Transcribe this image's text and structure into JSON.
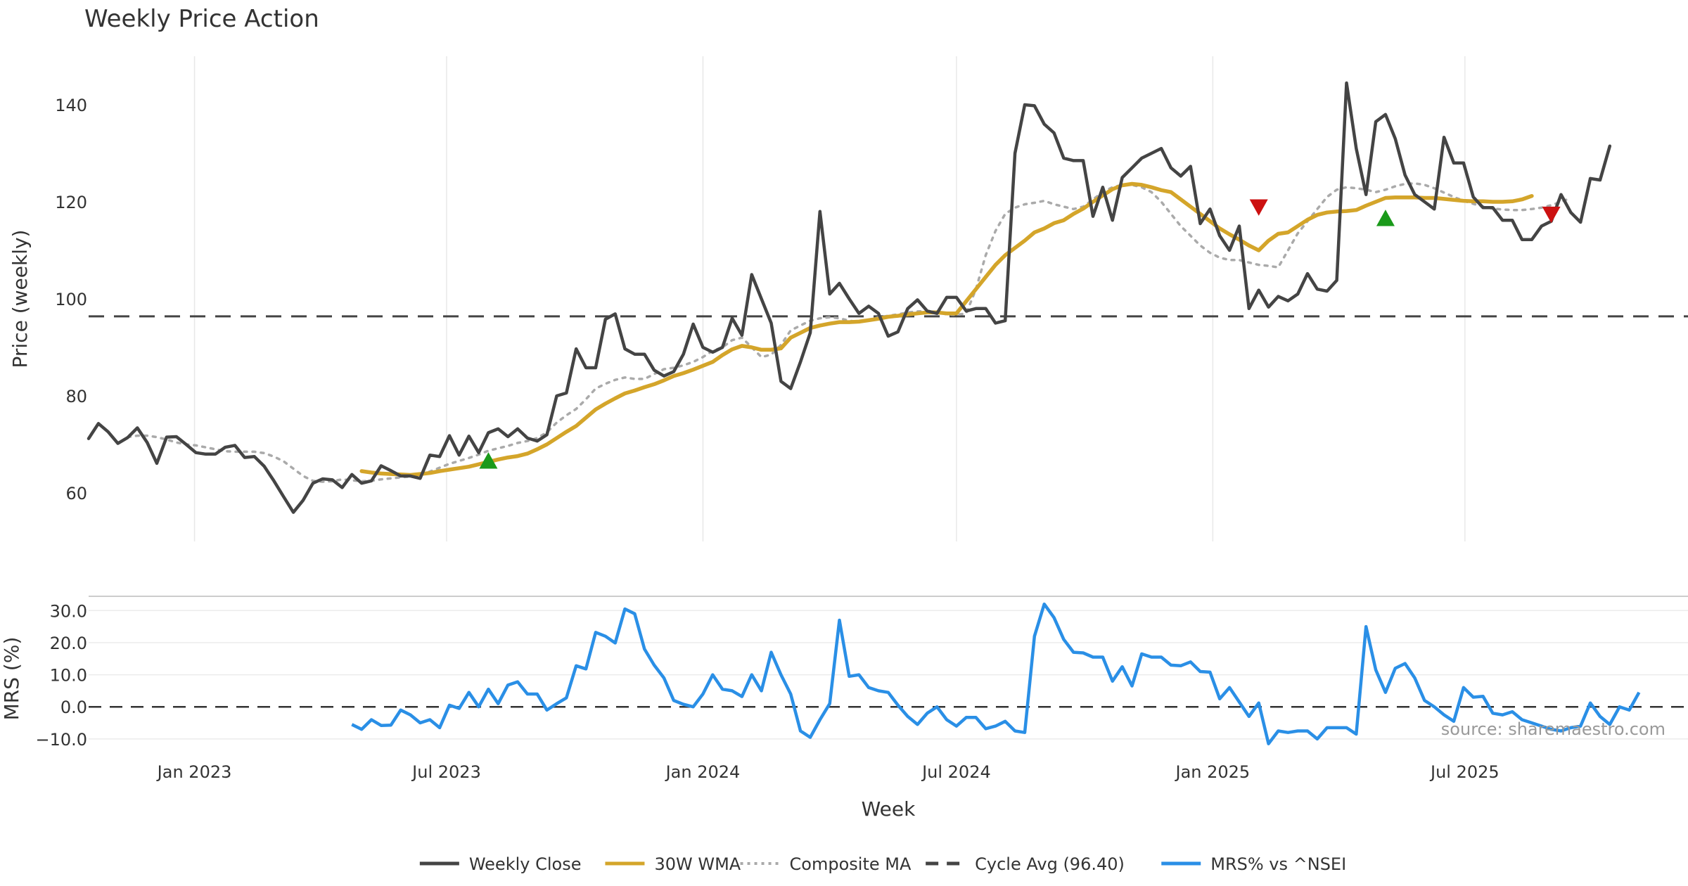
{
  "title": "Weekly Price Action",
  "source": "source: sharemaestro.com",
  "chart_data": [
    {
      "type": "line",
      "title": "Weekly Price Action",
      "xlabel": "Week",
      "ylabel": "Price (weekly)",
      "ylim": [
        50,
        150
      ],
      "yticks": [
        60,
        80,
        100,
        120,
        140
      ],
      "x_range": [
        "2022-10-17",
        "2025-11-24"
      ],
      "xticks": [
        {
          "label": "Jan 2023",
          "date": "2023-01-01"
        },
        {
          "label": "Jul 2023",
          "date": "2023-07-01"
        },
        {
          "label": "Jan 2024",
          "date": "2024-01-01"
        },
        {
          "label": "Jul 2024",
          "date": "2024-07-01"
        },
        {
          "label": "Jan 2025",
          "date": "2025-01-01"
        },
        {
          "label": "Jul 2025",
          "date": "2025-07-01"
        }
      ],
      "grid": true,
      "cycle_avg": 96.4,
      "series": [
        {
          "name": "Weekly Close",
          "color": "#444444",
          "style": "solid",
          "start": "2022-10-17",
          "values": [
            71.2,
            74.3,
            72.6,
            70.2,
            71.4,
            73.4,
            70.4,
            66.1,
            71.5,
            71.6,
            70.0,
            68.3,
            68.0,
            68.0,
            69.4,
            69.8,
            67.3,
            67.5,
            65.5,
            62.5,
            59.2,
            56.0,
            58.5,
            62.0,
            62.9,
            62.7,
            61.1,
            63.8,
            62.0,
            62.5,
            65.6,
            64.6,
            63.5,
            63.5,
            63.0,
            67.8,
            67.5,
            71.8,
            67.8,
            71.7,
            68.3,
            72.4,
            73.2,
            71.6,
            73.2,
            71.3,
            70.7,
            72.0,
            80.0,
            80.6,
            89.7,
            85.8,
            85.8,
            95.8,
            96.9,
            89.7,
            88.6,
            88.6,
            85.3,
            84.1,
            85.0,
            88.6,
            94.8,
            90.0,
            89.0,
            90.0,
            96.0,
            92.5,
            105.0,
            100.0,
            95.0,
            83.0,
            81.5,
            87.0,
            93.0,
            118.0,
            101.0,
            103.2,
            100.0,
            97.0,
            98.5,
            97.0,
            92.3,
            93.2,
            98.0,
            99.8,
            97.5,
            97.0,
            100.3,
            100.3,
            97.5,
            98.0,
            98.0,
            95.0,
            95.5,
            130.0,
            140.0,
            139.8,
            136.0,
            134.2,
            129.0,
            128.5,
            128.5,
            117.0,
            123.0,
            116.2,
            125.0,
            127.0,
            129.0,
            130.0,
            131.0,
            127.0,
            125.3,
            127.3,
            115.5,
            118.5,
            113.0,
            110.0,
            115.0,
            98.0,
            101.8,
            98.3,
            100.5,
            99.6,
            101.0,
            105.2,
            102.0,
            101.6,
            103.8,
            144.5,
            131.0,
            121.5,
            136.5,
            138.0,
            133.0,
            125.5,
            121.5,
            120.0,
            118.5,
            133.3,
            128.0,
            128.0,
            121.0,
            118.8,
            118.8,
            116.2,
            116.2,
            112.2,
            112.2,
            115.0,
            116.0,
            121.5,
            117.8,
            115.8,
            124.8,
            124.5,
            131.5
          ]
        },
        {
          "name": "30W WMA",
          "color": "#d4a52a",
          "style": "solid",
          "start": "2023-05-01",
          "values": [
            64.5,
            64.2,
            64.0,
            63.9,
            63.8,
            63.7,
            63.9,
            64.1,
            64.5,
            64.8,
            65.1,
            65.4,
            65.9,
            66.4,
            66.9,
            67.3,
            67.6,
            68.1,
            69.0,
            70.0,
            71.3,
            72.6,
            73.8,
            75.5,
            77.2,
            78.4,
            79.5,
            80.5,
            81.1,
            81.8,
            82.4,
            83.2,
            84.1,
            84.7,
            85.4,
            86.2,
            87.0,
            88.4,
            89.6,
            90.3,
            90.0,
            89.5,
            89.5,
            89.8,
            92.0,
            93.0,
            94.0,
            94.5,
            94.9,
            95.2,
            95.2,
            95.3,
            95.6,
            95.9,
            96.3,
            96.5,
            96.8,
            97.0,
            97.2,
            97.2,
            97.0,
            97.0,
            99.5,
            102.0,
            104.5,
            107.0,
            109.0,
            110.5,
            112.0,
            113.7,
            114.5,
            115.6,
            116.2,
            117.5,
            118.6,
            120.0,
            121.3,
            122.6,
            123.4,
            123.7,
            123.5,
            123.0,
            122.4,
            122.0,
            120.5,
            119.0,
            117.5,
            116.0,
            114.5,
            113.3,
            112.2,
            111.0,
            110.0,
            112.0,
            113.4,
            113.7,
            115.0,
            116.3,
            117.3,
            117.8,
            118.0,
            118.1,
            118.3,
            119.2,
            120.0,
            120.8,
            120.9,
            120.9,
            120.9,
            120.8,
            120.8,
            120.6,
            120.4,
            120.2,
            120.1,
            120.1,
            120.0,
            120.0,
            120.1,
            120.5,
            121.2
          ]
        },
        {
          "name": "Composite MA",
          "color": "#aaaaaa",
          "style": "dotted",
          "start": "2022-11-14",
          "values": [
            71.5,
            71.8,
            71.8,
            71.5,
            71.0,
            70.4,
            70.0,
            69.8,
            69.4,
            69.0,
            68.6,
            68.5,
            68.5,
            68.5,
            68.2,
            67.5,
            66.5,
            65.0,
            63.5,
            62.5,
            62.3,
            62.4,
            62.8,
            62.6,
            62.4,
            62.5,
            62.8,
            63.0,
            63.2,
            63.4,
            63.8,
            64.4,
            65.2,
            66.0,
            66.6,
            67.2,
            67.9,
            68.7,
            69.2,
            69.7,
            70.3,
            70.7,
            71.3,
            72.5,
            74.5,
            76.0,
            77.3,
            79.3,
            81.5,
            82.5,
            83.3,
            83.8,
            83.5,
            83.5,
            84.5,
            85.5,
            85.8,
            86.3,
            87.0,
            88.0,
            89.3,
            90.0,
            91.5,
            92.0,
            90.0,
            88.0,
            88.5,
            90.5,
            93.5,
            94.5,
            95.5,
            96.0,
            96.2,
            96.0,
            95.5,
            95.2,
            95.5,
            96.2,
            96.5,
            96.8,
            97.2,
            97.4,
            97.5,
            97.3,
            96.8,
            96.7,
            97.0,
            102.0,
            109.0,
            114.0,
            117.5,
            118.8,
            119.5,
            119.8,
            120.2,
            119.5,
            119.0,
            118.5,
            119.0,
            120.5,
            122.0,
            123.0,
            123.5,
            123.5,
            123.0,
            122.0,
            120.0,
            117.5,
            115.0,
            113.0,
            111.0,
            109.5,
            108.5,
            108.0,
            108.0,
            107.5,
            107.0,
            106.8,
            106.5,
            110.0,
            113.5,
            116.0,
            118.5,
            121.0,
            122.5,
            123.0,
            122.8,
            122.5,
            122.0,
            122.5,
            123.2,
            123.7,
            123.8,
            123.5,
            122.8,
            121.9,
            121.0,
            120.2,
            119.6,
            119.0,
            118.6,
            118.4,
            118.3,
            118.3,
            118.5,
            118.8,
            119.3,
            120.0,
            120.8
          ]
        }
      ],
      "signals": [
        {
          "type": "buy",
          "date": "2023-07-31",
          "y": 66.5,
          "color": "#1a9a1a"
        },
        {
          "type": "sell",
          "date": "2025-02-03",
          "y": 119,
          "color": "#cc1111"
        },
        {
          "type": "buy",
          "date": "2025-05-05",
          "y": 116.5,
          "color": "#1a9a1a"
        },
        {
          "type": "sell",
          "date": "2025-09-01",
          "y": 117.5,
          "color": "#cc1111"
        }
      ]
    },
    {
      "type": "line",
      "xlabel": "Week",
      "ylabel": "MRS (%)",
      "ylim": [
        -12,
        34
      ],
      "yticks": [
        {
          "value": 30,
          "label": "30.0"
        },
        {
          "value": 20,
          "label": "20.0"
        },
        {
          "value": 10,
          "label": "10.0"
        },
        {
          "value": 0,
          "label": "0.0"
        },
        {
          "value": -10,
          "label": "−10.0"
        }
      ],
      "zero_line": 0,
      "series": [
        {
          "name": "MRS% vs ^NSEI",
          "color": "#2a8fe6",
          "style": "solid",
          "start": "2023-04-24",
          "values": [
            -5.5,
            -7.0,
            -4.0,
            -5.8,
            -5.7,
            -1.0,
            -2.5,
            -5.0,
            -4.0,
            -6.5,
            0.5,
            -0.5,
            4.5,
            0.0,
            5.5,
            1.0,
            6.8,
            7.8,
            4.0,
            4.0,
            -1.0,
            1.0,
            2.8,
            12.8,
            11.8,
            23.2,
            22.0,
            19.9,
            30.5,
            29.0,
            18.0,
            13.0,
            9.0,
            2.0,
            0.8,
            0.0,
            4.0,
            10.0,
            5.5,
            5.0,
            3.2,
            10.0,
            5.0,
            17.0,
            10.0,
            4.0,
            -7.5,
            -9.5,
            -4.0,
            1.0,
            27.0,
            9.5,
            10.0,
            6.0,
            5.0,
            4.5,
            0.5,
            -3.0,
            -5.5,
            -2.0,
            0.0,
            -4.0,
            -6.0,
            -3.3,
            -3.3,
            -6.8,
            -6.0,
            -4.5,
            -7.5,
            -8.0,
            22.0,
            32.0,
            27.8,
            21.0,
            17.0,
            16.8,
            15.5,
            15.5,
            8.0,
            12.5,
            6.5,
            16.5,
            15.5,
            15.5,
            13.0,
            12.8,
            14.0,
            11.0,
            10.8,
            2.5,
            6.0,
            1.5,
            -3.0,
            1.2,
            -11.5,
            -7.5,
            -8.0,
            -7.5,
            -7.5,
            -10.0,
            -6.5,
            -6.5,
            -6.5,
            -8.5,
            25.0,
            11.5,
            4.5,
            12.0,
            13.5,
            9.0,
            2.0,
            0.0,
            -2.5,
            -4.5,
            6.0,
            3.0,
            3.3,
            -2.0,
            -2.5,
            -1.5,
            -4.0,
            -5.0,
            -6.0,
            -7.0,
            -7.5,
            -6.5,
            -6.0,
            1.2,
            -3.0,
            -5.5,
            0.0,
            -1.0,
            4.5
          ]
        }
      ]
    }
  ],
  "legend": [
    {
      "label": "Weekly Close",
      "color": "#444444",
      "style": "solid"
    },
    {
      "label": "30W WMA",
      "color": "#d4a52a",
      "style": "solid"
    },
    {
      "label": "Composite MA",
      "color": "#aaaaaa",
      "style": "dotted"
    },
    {
      "label": "Cycle Avg (96.40)",
      "color": "#444444",
      "style": "dashed"
    },
    {
      "label": "MRS% vs ^NSEI",
      "color": "#2a8fe6",
      "style": "solid"
    }
  ]
}
